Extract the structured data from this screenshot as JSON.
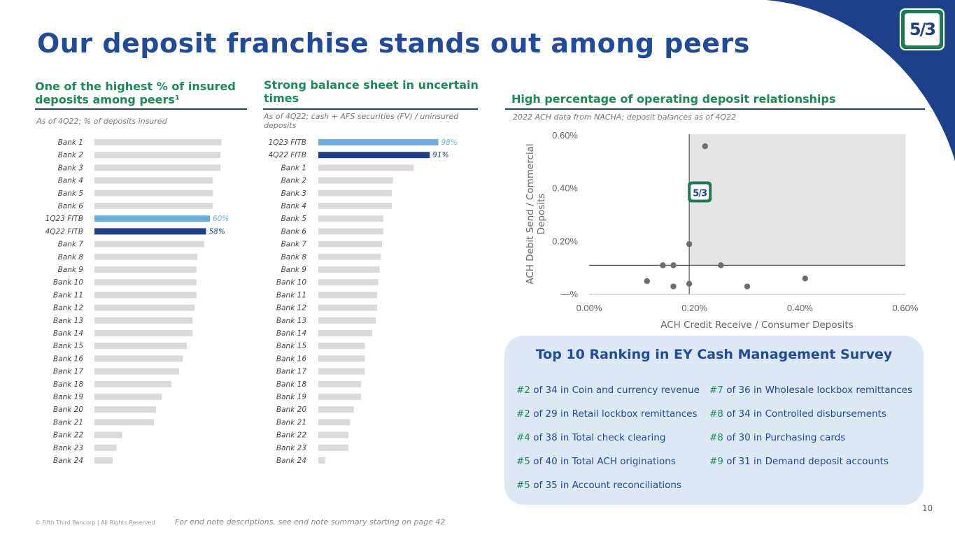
{
  "page": {
    "title": "Our deposit franchise stands out among peers",
    "page_number": "10",
    "copyright": "© Fifth Third Bancorp | All Rights Reserved",
    "endnote": "For end note descriptions, see end note summary starting on page 42",
    "logo_text": "5/3",
    "colors": {
      "title": "#214a98",
      "section": "#1b8a57",
      "bar_grey": "#dadada",
      "bar_light_blue": "#6aaee0",
      "bar_dark_blue": "#1e3f8a",
      "panel_bg": "#dce9f4"
    }
  },
  "sections": {
    "insured": {
      "heading_line1": "One of the highest % of insured",
      "heading_line2": "deposits among peers¹",
      "subtitle": "As of 4Q22; % of deposits insured"
    },
    "balance": {
      "heading_line1": "Strong balance sheet in uncertain",
      "heading_line2": "times",
      "subtitle_line1": "As of 4Q22; cash + AFS securities (FV) / uninsured",
      "subtitle_line2": "deposits"
    },
    "operating": {
      "heading": "High percentage of operating deposit relationships",
      "subtitle": "2022 ACH data from NACHA; deposit balances as of 4Q22"
    }
  },
  "chart_data": [
    {
      "type": "bar",
      "orientation": "horizontal",
      "categories": [
        "Bank 1",
        "Bank 2",
        "Bank 3",
        "Bank 4",
        "Bank 5",
        "Bank 6",
        "1Q23 FITB",
        "4Q22 FITB",
        "Bank 7",
        "Bank 8",
        "Bank 9",
        "Bank 10",
        "Bank 11",
        "Bank 12",
        "Bank 13",
        "Bank 14",
        "Bank 15",
        "Bank 16",
        "Bank 17",
        "Bank 18",
        "Bank 19",
        "Bank 20",
        "Bank 21",
        "Bank 22",
        "Bank 23",
        "Bank 24"
      ],
      "values": [
        66,
        65.5,
        65.5,
        61.5,
        61.5,
        61.5,
        60,
        58,
        57,
        53.5,
        53,
        53,
        53,
        52,
        51,
        51,
        48,
        46,
        44,
        40,
        35,
        32,
        31,
        14.5,
        11.5,
        9.5
      ],
      "data_labels": {
        "1Q23 FITB": "60%",
        "4Q22 FITB": "58%"
      },
      "highlight": {
        "1Q23 FITB": "light",
        "4Q22 FITB": "dark"
      },
      "xlim": [
        0,
        100
      ]
    },
    {
      "type": "bar",
      "orientation": "horizontal",
      "categories": [
        "1Q23 FITB",
        "4Q22 FITB",
        "Bank 1",
        "Bank 2",
        "Bank 3",
        "Bank 4",
        "Bank 5",
        "Bank 6",
        "Bank 7",
        "Bank 8",
        "Bank 9",
        "Bank 10",
        "Bank 11",
        "Bank 12",
        "Bank 13",
        "Bank 14",
        "Bank 15",
        "Bank 16",
        "Bank 17",
        "Bank 18",
        "Bank 19",
        "Bank 20",
        "Bank 21",
        "Bank 22",
        "Bank 23",
        "Bank 24"
      ],
      "values": [
        98,
        91,
        78,
        61,
        60,
        60,
        53,
        53,
        52,
        51,
        50,
        49,
        48,
        48,
        47,
        44,
        38,
        38,
        38,
        35,
        35,
        29,
        26,
        24.5,
        24.5,
        5.5
      ],
      "data_labels": {
        "1Q23 FITB": "98%",
        "4Q22 FITB": "91%"
      },
      "highlight": {
        "1Q23 FITB": "light",
        "4Q22 FITB": "dark"
      },
      "xlim": [
        0,
        100
      ]
    },
    {
      "type": "scatter",
      "xlabel": "ACH Credit Receive / Consumer Deposits",
      "ylabel_line1": "ACH Debit Send / Commercial",
      "ylabel_line2": "Deposits",
      "x_ticks": [
        "0.00%",
        "0.20%",
        "0.40%",
        "0.60%"
      ],
      "y_ticks": [
        "—%",
        "0.20%",
        "0.40%",
        "0.60%"
      ],
      "xlim": [
        0,
        0.6
      ],
      "ylim": [
        0,
        0.6
      ],
      "reference_lines": {
        "x": 0.19,
        "y": 0.11
      },
      "highlight_region": "upper-right",
      "points": [
        {
          "x": 0.22,
          "y": 0.56
        },
        {
          "x": 0.19,
          "y": 0.19
        },
        {
          "x": 0.11,
          "y": 0.05
        },
        {
          "x": 0.14,
          "y": 0.11
        },
        {
          "x": 0.16,
          "y": 0.11
        },
        {
          "x": 0.16,
          "y": 0.03
        },
        {
          "x": 0.19,
          "y": 0.04
        },
        {
          "x": 0.25,
          "y": 0.11
        },
        {
          "x": 0.3,
          "y": 0.03
        },
        {
          "x": 0.41,
          "y": 0.06
        }
      ],
      "fitb_point": {
        "x": 0.21,
        "y": 0.39,
        "label": "5/3"
      }
    }
  ],
  "ey": {
    "title": "Top 10 Ranking in EY Cash Management Survey",
    "left": [
      {
        "rank": "#2",
        "text": " of 34 in Coin and currency revenue"
      },
      {
        "rank": "#2",
        "text": " of 29 in Retail lockbox remittances"
      },
      {
        "rank": "#4",
        "text": " of 38 in Total check clearing"
      },
      {
        "rank": "#5",
        "text": " of 40 in Total ACH originations"
      },
      {
        "rank": "#5",
        "text": " of 35 in Account reconciliations"
      }
    ],
    "right": [
      {
        "rank": "#7",
        "text": " of 36 in Wholesale lockbox remittances"
      },
      {
        "rank": "#8",
        "text": " of 34 in Controlled disbursements"
      },
      {
        "rank": "#8",
        "text": " of 30 in Purchasing cards"
      },
      {
        "rank": "#9",
        "text": " of 31 in Demand deposit accounts"
      }
    ]
  }
}
